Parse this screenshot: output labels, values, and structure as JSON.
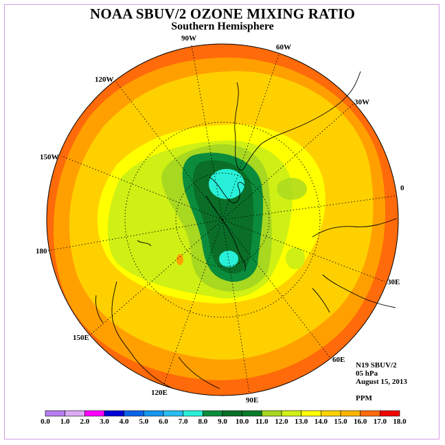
{
  "header": {
    "title": "NOAA SBUV/2 OZONE MIXING RATIO",
    "subtitle": "Southern Hemisphere"
  },
  "longitude_labels": [
    "90W",
    "60W",
    "120W",
    "30W",
    "150W",
    "0",
    "180",
    "30E",
    "150E",
    "60E",
    "120E",
    "90E"
  ],
  "info": {
    "instrument": "N19 SBUV/2",
    "pressure": "05 hPa",
    "date": "August 15, 2013",
    "units": "PPM"
  },
  "colorbar": {
    "ticks": [
      "0.0",
      "1.0",
      "2.0",
      "3.0",
      "4.0",
      "5.0",
      "6.0",
      "7.0",
      "8.0",
      "9.0",
      "10.0",
      "11.0",
      "12.0",
      "13.0",
      "14.0",
      "15.0",
      "16.0",
      "17.0",
      "18.0"
    ],
    "colors": [
      "#b57ef0",
      "#dcaaf5",
      "#ff00ff",
      "#0000d8",
      "#0a64e8",
      "#1496f0",
      "#28bcf0",
      "#28f0d8",
      "#0a8c3c",
      "#0a6e28",
      "#087a28",
      "#a8d820",
      "#cff014",
      "#ffff00",
      "#ffd200",
      "#ffb400",
      "#ff6a0a",
      "#f00000",
      "#8c5a3c"
    ]
  },
  "colors": {
    "ring_outer": "#ff6a0a",
    "ring_2": "#ffa000",
    "ring_3": "#ffd000",
    "inner_yellow": "#ffff00",
    "light_green": "#cff014",
    "green": "#a8d820",
    "dark_green_1": "#0a8c3c",
    "dark_green_2": "#0a6e28",
    "cyan": "#28f0d8"
  }
}
